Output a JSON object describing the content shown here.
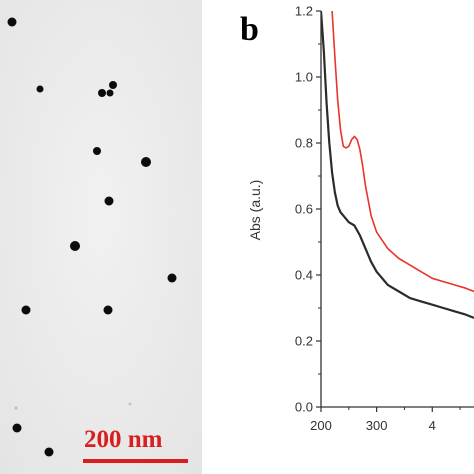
{
  "micrograph": {
    "scale_bar_label": "200 nm",
    "scale_color": "#d81e1e",
    "background_color": "#ececec"
  },
  "chart_data": {
    "type": "line",
    "panel_label": "b",
    "title": "",
    "xlabel": "",
    "ylabel": "Abs (a.u.)",
    "xlim": [
      200,
      475
    ],
    "ylim": [
      0.0,
      1.2
    ],
    "x_ticks": [
      "200",
      "300",
      "4"
    ],
    "y_ticks": [
      "0.0",
      "0.2",
      "0.4",
      "0.6",
      "0.8",
      "1.0",
      "1.2"
    ],
    "grid": false,
    "series": [
      {
        "color": "#e8342a",
        "x": [
          220,
          225,
          230,
          235,
          240,
          245,
          250,
          255,
          260,
          265,
          270,
          275,
          280,
          290,
          300,
          320,
          340,
          360,
          380,
          400,
          420,
          440,
          460,
          475
        ],
        "y": [
          1.2,
          1.06,
          0.93,
          0.84,
          0.79,
          0.785,
          0.79,
          0.81,
          0.82,
          0.81,
          0.78,
          0.73,
          0.67,
          0.58,
          0.53,
          0.48,
          0.45,
          0.43,
          0.41,
          0.39,
          0.38,
          0.37,
          0.36,
          0.35
        ]
      },
      {
        "color": "#2b2b2b",
        "x": [
          200,
          205,
          210,
          215,
          220,
          225,
          230,
          235,
          240,
          250,
          260,
          270,
          280,
          290,
          300,
          320,
          340,
          360,
          380,
          400,
          420,
          440,
          460,
          475
        ],
        "y": [
          1.2,
          1.08,
          0.92,
          0.8,
          0.71,
          0.65,
          0.61,
          0.59,
          0.58,
          0.56,
          0.55,
          0.52,
          0.48,
          0.44,
          0.41,
          0.37,
          0.35,
          0.33,
          0.32,
          0.31,
          0.3,
          0.29,
          0.28,
          0.27
        ]
      }
    ]
  }
}
